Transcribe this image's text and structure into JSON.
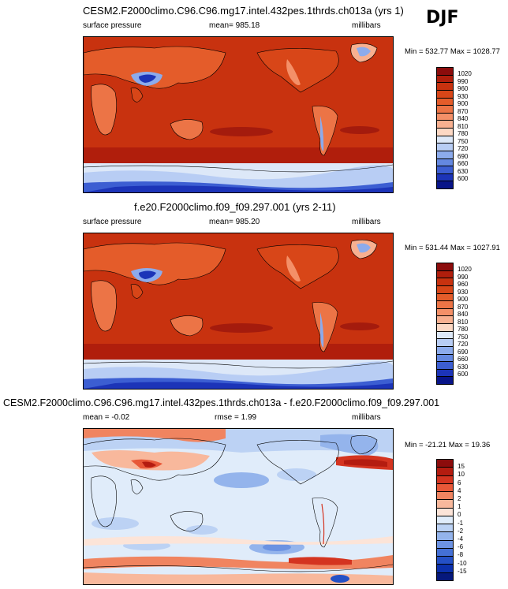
{
  "season": "DJF",
  "units": "millibars",
  "panels": [
    {
      "title": "CESM2.F2000climo.C96.C96.mg17.intel.432pes.1thrds.ch013a (yrs 1)",
      "field": "surface pressure",
      "stat_left": "mean= 985.18",
      "stat_mid": "",
      "units": "millibars",
      "minmax": "Min = 532.77 Max = 1028.77"
    },
    {
      "title": "f.e20.F2000climo.f09_f09.297.001 (yrs 2-11)",
      "field": "surface pressure",
      "stat_left": "mean= 985.20",
      "stat_mid": "",
      "units": "millibars",
      "minmax": "Min = 531.44 Max = 1027.91"
    },
    {
      "title": "CESM2.F2000climo.C96.C96.mg17.intel.432pes.1thrds.ch013a - f.e20.F2000climo.f09_f09.297.001",
      "field": "",
      "stat_left": "mean =  -0.02",
      "stat_mid": "rmse =   1.99",
      "units": "millibars",
      "minmax": "Min = -21.21 Max =  19.36"
    }
  ],
  "colorbar_abs": {
    "labels": [
      "1020",
      "990",
      "960",
      "930",
      "900",
      "870",
      "840",
      "810",
      "780",
      "750",
      "720",
      "690",
      "660",
      "630",
      "600"
    ],
    "colors": [
      "#8c0c0c",
      "#b01e0c",
      "#c8320f",
      "#d84618",
      "#e45c2a",
      "#ec7446",
      "#f49068",
      "#f8b090",
      "#fcd8c4",
      "#dde8f8",
      "#b8cdf4",
      "#8cabec",
      "#6488e0",
      "#3c5ed2",
      "#1c34b8",
      "#081488"
    ]
  },
  "colorbar_diff": {
    "labels": [
      "15",
      "10",
      "6",
      "4",
      "2",
      "1",
      "0",
      "-1",
      "-2",
      "-4",
      "-6",
      "-8",
      "-10",
      "-15"
    ],
    "colors": [
      "#8c0c0c",
      "#b41c10",
      "#d43420",
      "#e85838",
      "#f08460",
      "#f8b89c",
      "#fce4d8",
      "#e0ecfa",
      "#bcd2f4",
      "#94b4ec",
      "#6c92e2",
      "#4470d6",
      "#2450c6",
      "#0c30ac",
      "#06187c"
    ]
  }
}
